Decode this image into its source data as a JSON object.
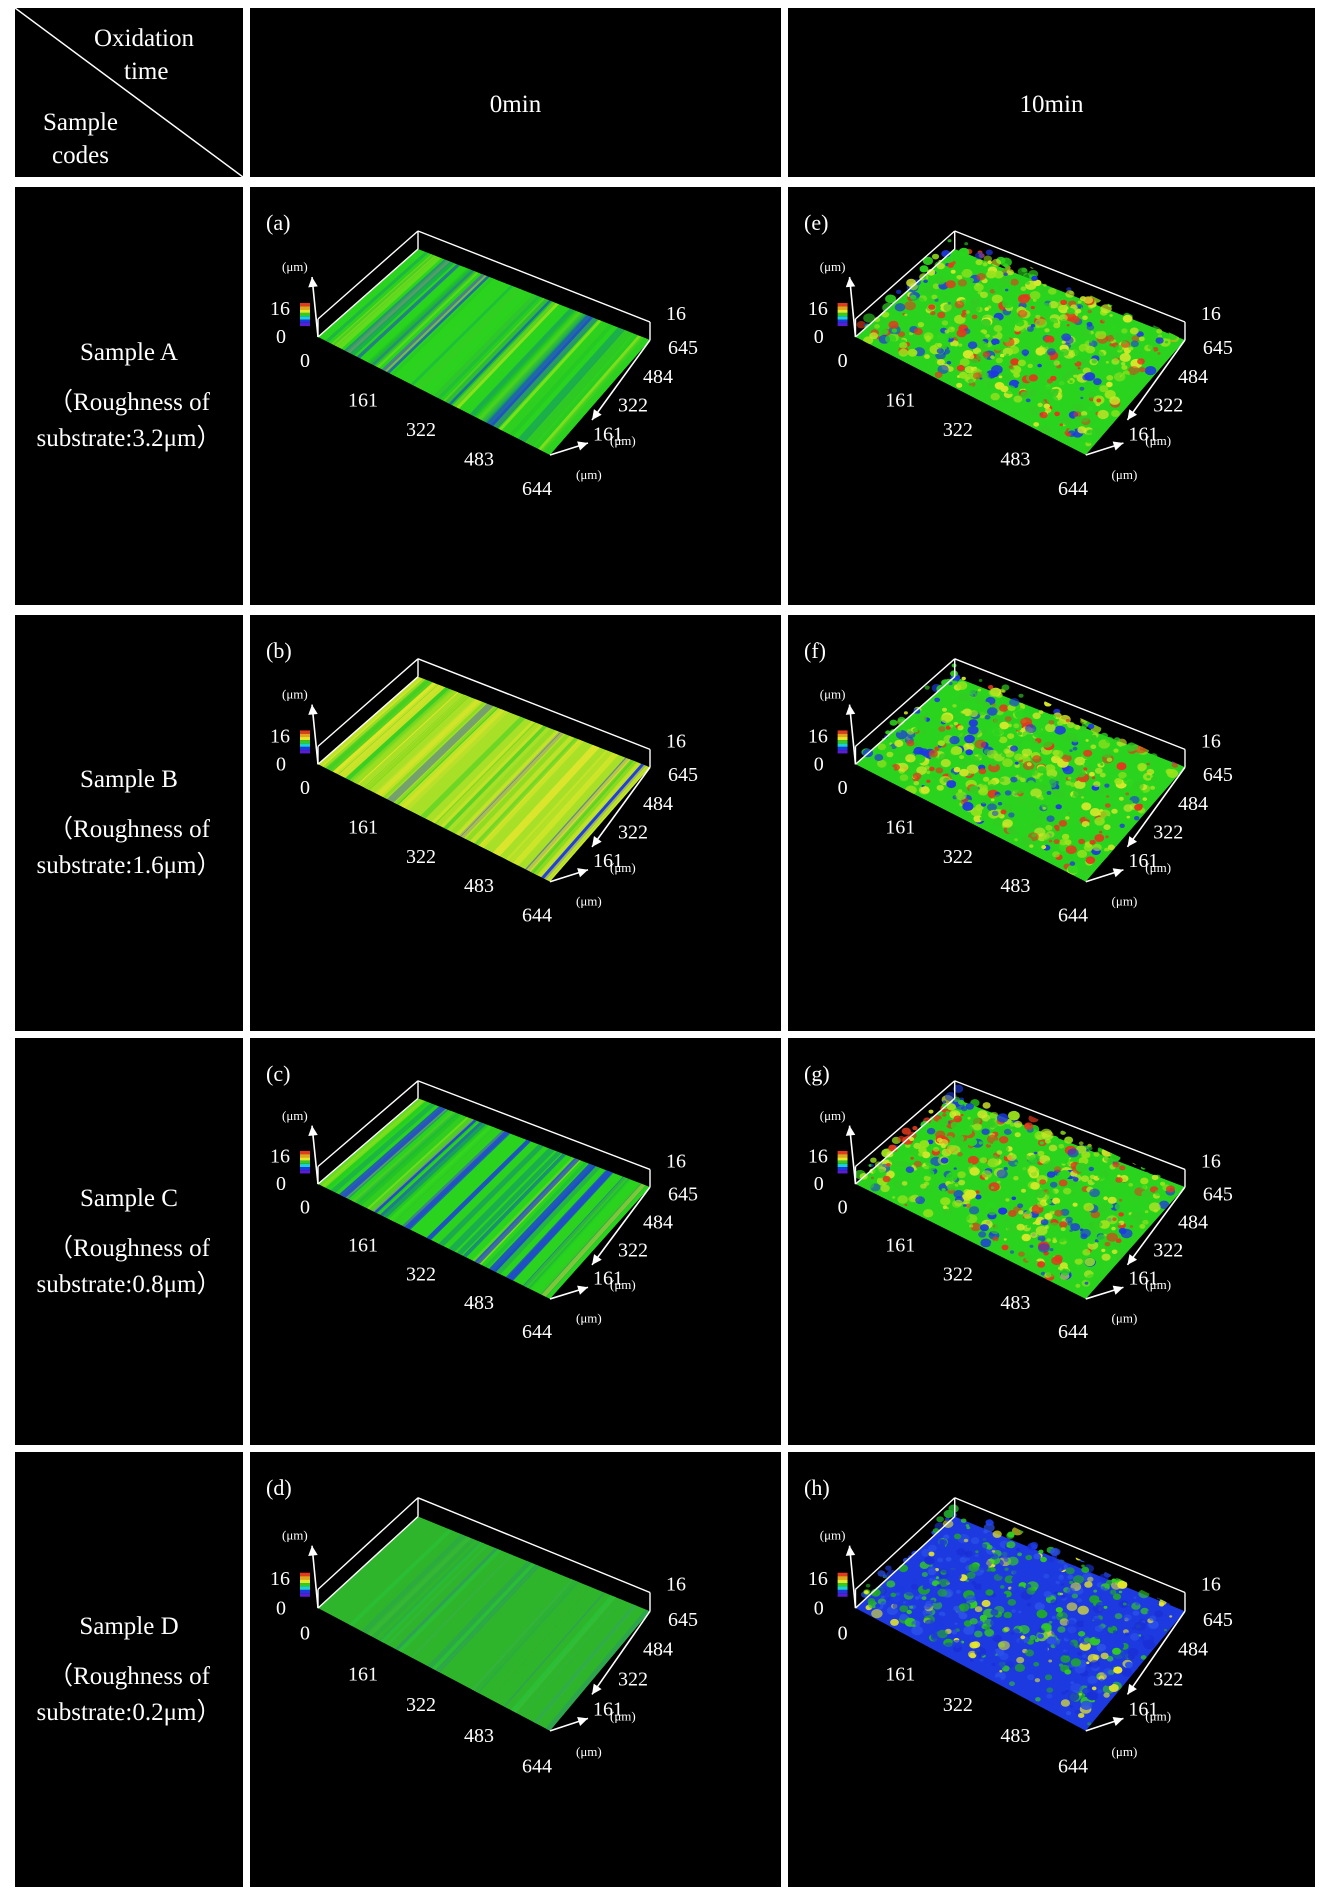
{
  "header": {
    "corner_top": [
      "Oxidation",
      "time"
    ],
    "corner_bottom": [
      "Sample",
      "codes"
    ],
    "columns": [
      "0min",
      "10min"
    ]
  },
  "rows": [
    {
      "name": "Sample A",
      "roughness_line1": "（Roughness of",
      "roughness_line2": "substrate:3.2μm）"
    },
    {
      "name": "Sample B",
      "roughness_line1": "（Roughness of",
      "roughness_line2": "substrate:1.6μm）"
    },
    {
      "name": "Sample C",
      "roughness_line1": "（Roughness of",
      "roughness_line2": "substrate:0.8μm）"
    },
    {
      "name": "Sample D",
      "roughness_line1": "（Roughness of",
      "roughness_line2": "substrate:0.2μm）"
    }
  ],
  "panels": [
    {
      "label": "(a)",
      "surface": "striated",
      "tone": "green-blue",
      "oxidation": "0min",
      "sample": "Sample A"
    },
    {
      "label": "(e)",
      "surface": "rough",
      "tone": "green-yellow-red",
      "oxidation": "10min",
      "sample": "Sample A"
    },
    {
      "label": "(b)",
      "surface": "striated",
      "tone": "yellow-green",
      "oxidation": "0min",
      "sample": "Sample B"
    },
    {
      "label": "(f)",
      "surface": "rough",
      "tone": "green-yellow-red",
      "oxidation": "10min",
      "sample": "Sample B"
    },
    {
      "label": "(c)",
      "surface": "striated",
      "tone": "green-blue",
      "oxidation": "0min",
      "sample": "Sample C"
    },
    {
      "label": "(g)",
      "surface": "rough",
      "tone": "green-yellow-red",
      "oxidation": "10min",
      "sample": "Sample C"
    },
    {
      "label": "(d)",
      "surface": "smooth",
      "tone": "green",
      "oxidation": "0min",
      "sample": "Sample D"
    },
    {
      "label": "(h)",
      "surface": "rough",
      "tone": "blue-green",
      "oxidation": "10min",
      "sample": "Sample D"
    }
  ],
  "axes": {
    "z_unit": "(μm)",
    "z_ticks": [
      "16",
      "0"
    ],
    "x_ticks": [
      "0",
      "161",
      "322",
      "483",
      "644"
    ],
    "x_unit": "(μm)",
    "y_ticks": [
      "161",
      "322",
      "484",
      "645"
    ],
    "y_unit": "(μm)",
    "y_top": "16"
  },
  "colors": {
    "background": "#000000",
    "grid_lines": "#ffffff",
    "surface_blue": "#1a2fd6",
    "surface_green": "#33cc22",
    "surface_yellow": "#d6e82a",
    "surface_red": "#e23a1c"
  }
}
